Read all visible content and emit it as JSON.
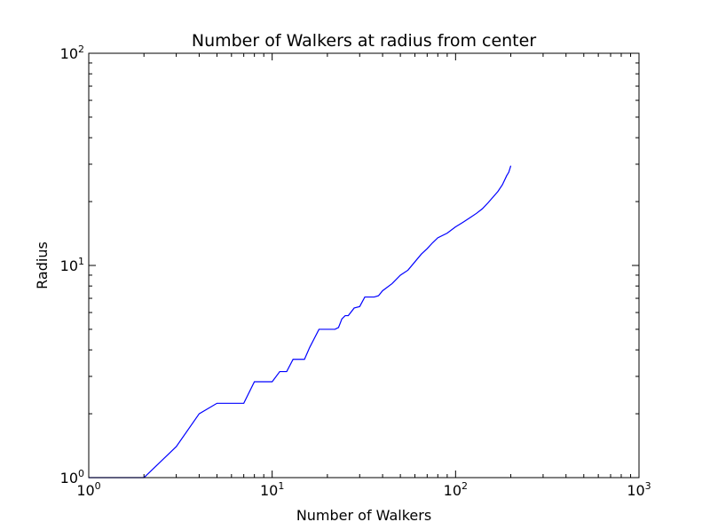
{
  "chart_data": {
    "type": "line",
    "title": "Number of Walkers at radius from center",
    "xlabel": "Number of Walkers",
    "ylabel": "Radius",
    "xscale": "log",
    "yscale": "log",
    "xlim": [
      1,
      1000
    ],
    "ylim": [
      1,
      100
    ],
    "grid": false,
    "legend": "none",
    "line_color": "#0000ff",
    "x_ticks": [
      {
        "base": "10",
        "exp": "0",
        "value": 1
      },
      {
        "base": "10",
        "exp": "1",
        "value": 10
      },
      {
        "base": "10",
        "exp": "2",
        "value": 100
      },
      {
        "base": "10",
        "exp": "3",
        "value": 1000
      }
    ],
    "y_ticks": [
      {
        "base": "10",
        "exp": "0",
        "value": 1
      },
      {
        "base": "10",
        "exp": "1",
        "value": 10
      },
      {
        "base": "10",
        "exp": "2",
        "value": 100
      }
    ],
    "series": [
      {
        "x": [
          1,
          2,
          3,
          4,
          5,
          7,
          8,
          10,
          11,
          12,
          13,
          15,
          16,
          18,
          22,
          23,
          24,
          25,
          26,
          28,
          30,
          32,
          36,
          38,
          40,
          45,
          50,
          55,
          60,
          65,
          70,
          75,
          80,
          90,
          100,
          110,
          120,
          130,
          140,
          150,
          160,
          170,
          180,
          190,
          195,
          200
        ],
        "y": [
          1,
          1,
          1.4,
          2.0,
          2.24,
          2.24,
          2.83,
          2.83,
          3.16,
          3.16,
          3.61,
          3.61,
          4.1,
          5.0,
          5.0,
          5.1,
          5.6,
          5.8,
          5.8,
          6.3,
          6.4,
          7.1,
          7.1,
          7.2,
          7.6,
          8.2,
          9.0,
          9.5,
          10.4,
          11.3,
          12.0,
          12.8,
          13.5,
          14.2,
          15.2,
          16.0,
          16.8,
          17.6,
          18.5,
          19.7,
          21.0,
          22.3,
          24.0,
          26.5,
          27.5,
          29.5
        ]
      }
    ]
  }
}
